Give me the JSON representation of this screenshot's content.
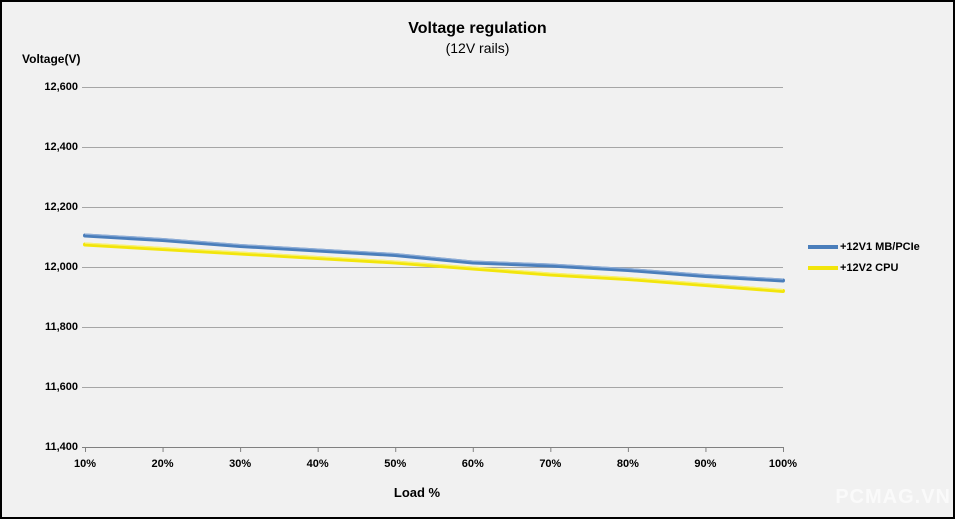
{
  "header": {
    "title": "Voltage regulation",
    "subtitle": "(12V rails)"
  },
  "axes": {
    "y_title": "Voltage(V)",
    "x_title": "Load %"
  },
  "watermark": "PCMAG.VN",
  "chart_data": {
    "type": "line",
    "title": "Voltage regulation",
    "subtitle": "(12V rails)",
    "xlabel": "Load %",
    "ylabel": "Voltage(V)",
    "categories": [
      "10%",
      "20%",
      "30%",
      "40%",
      "50%",
      "60%",
      "70%",
      "80%",
      "90%",
      "100%"
    ],
    "series": [
      {
        "name": "+12V1 MB/PCIe",
        "color": "#4a7ebb",
        "highlight": "#9db8dd",
        "values": [
          12105,
          12090,
          12070,
          12055,
          12040,
          12015,
          12005,
          11990,
          11970,
          11955
        ]
      },
      {
        "name": "+12V2 CPU",
        "color": "#f2e50b",
        "highlight": "#faf48c",
        "values": [
          12075,
          12060,
          12045,
          12030,
          12015,
          11995,
          11975,
          11960,
          11940,
          11920
        ]
      }
    ],
    "ylim": [
      11400,
      12600
    ],
    "y_ticks": [
      {
        "value": 12600,
        "label": "12,600"
      },
      {
        "value": 12400,
        "label": "12,400"
      },
      {
        "value": 12200,
        "label": "12,200"
      },
      {
        "value": 12000,
        "label": "12,000"
      },
      {
        "value": 11800,
        "label": "11,800"
      },
      {
        "value": 11600,
        "label": "11,600"
      },
      {
        "value": 11400,
        "label": "11,400"
      }
    ],
    "grid": "horizontal-only",
    "legend_position": "right"
  },
  "colors": {
    "background": "#f1f1f1",
    "border": "#000000",
    "gridline": "#a6a6a6",
    "axis": "#808080",
    "text": "#000000",
    "watermark": "#fafafa"
  }
}
